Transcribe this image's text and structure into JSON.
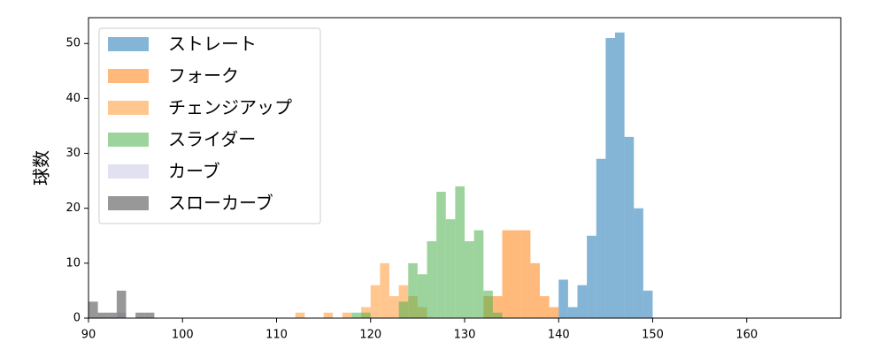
{
  "chart_data": {
    "type": "histogram",
    "y_label": "球数",
    "xlim": [
      90,
      170
    ],
    "ylim": [
      0,
      54.7
    ],
    "xticks": [
      90,
      100,
      110,
      120,
      130,
      140,
      150,
      160
    ],
    "yticks": [
      0,
      10,
      20,
      30,
      40,
      50
    ],
    "alpha": 0.55,
    "legend": "upper-left",
    "series": [
      {
        "name": "ストレート",
        "color": "#1f77b4",
        "bins": [
          140,
          141,
          142,
          143,
          144,
          145,
          146,
          147,
          148,
          149,
          150
        ],
        "values": [
          7,
          2,
          6,
          15,
          29,
          51,
          52,
          33,
          20,
          5
        ]
      },
      {
        "name": "フォーク",
        "color": "#ff7f0e",
        "bins": [
          132,
          133,
          134,
          135,
          136,
          137,
          138,
          139,
          140
        ],
        "values": [
          4,
          4,
          16,
          16,
          16,
          10,
          4,
          2
        ]
      },
      {
        "name": "チェンジアップ",
        "color": "#ff9933",
        "bins": [
          112,
          113,
          114,
          115,
          116,
          117,
          118,
          119,
          120,
          121,
          122,
          123,
          124,
          125,
          126
        ],
        "values": [
          1,
          0,
          0,
          1,
          0,
          1,
          0,
          2,
          6,
          10,
          4,
          6,
          4,
          2
        ]
      },
      {
        "name": "スライダー",
        "color": "#4cb04c",
        "bins": [
          118,
          119,
          120,
          121,
          122,
          123,
          124,
          125,
          126,
          127,
          128,
          129,
          130,
          131,
          132,
          133,
          134
        ],
        "values": [
          1,
          1,
          0,
          0,
          0,
          3,
          10,
          8,
          14,
          23,
          18,
          24,
          14,
          16,
          5,
          1
        ]
      },
      {
        "name": "カーブ",
        "color": "#c8c8e8",
        "bins": [
          93,
          94
        ],
        "values": [
          1
        ]
      },
      {
        "name": "スローカーブ",
        "color": "#444444",
        "bins": [
          90,
          91,
          92,
          93,
          94,
          95,
          96,
          97
        ],
        "values": [
          3,
          1,
          1,
          5,
          0,
          1,
          1
        ]
      }
    ]
  }
}
